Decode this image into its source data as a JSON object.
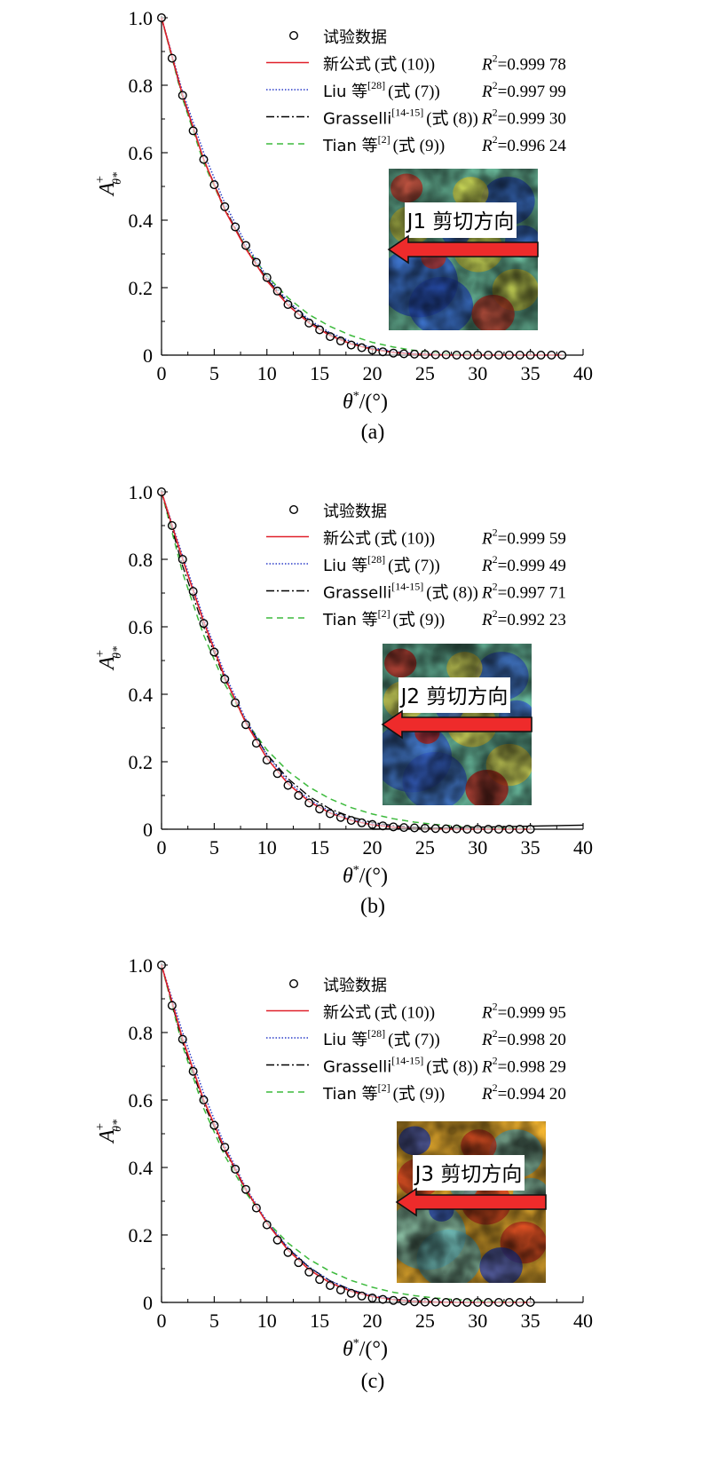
{
  "figure": {
    "legend_entries": [
      {
        "label": "试验数据",
        "ref": "",
        "suffix": ""
      },
      {
        "label": "新公式",
        "ref": "",
        "suffix": "(式 (10))"
      },
      {
        "label": "Liu 等",
        "ref": "[28]",
        "suffix": "(式 (7))"
      },
      {
        "label": "Grasselli",
        "ref": "[14-15]",
        "suffix": "(式 (8))"
      },
      {
        "label": "Tian 等",
        "ref": "[2]",
        "suffix": "(式 (9))"
      }
    ],
    "r2_prefix": "R",
    "r2_sup": "2",
    "ylabel_main": "A",
    "ylabel_sup": "+",
    "ylabel_sub": "θ*",
    "xlabel_main": "θ",
    "xlabel_sup": "*",
    "xlabel_rest": "/(°)",
    "colors": {
      "new": "#e0202a",
      "liu": "#2a3cc8",
      "grasselli": "#000000",
      "tian": "#3dba3d",
      "arrow": "#ee2b2b"
    }
  },
  "chart_data": [
    {
      "type": "scatter",
      "panel_label": "(a)",
      "inset_label": "J1 剪切方向",
      "xlim": [
        0,
        40
      ],
      "ylim": [
        0,
        1.0
      ],
      "xticks": [
        0,
        5,
        10,
        15,
        20,
        25,
        30,
        35,
        40
      ],
      "yticks": [
        0,
        0.2,
        0.4,
        0.6,
        0.8,
        1.0
      ],
      "ytick_labels": [
        "0",
        "0.2",
        "0.4",
        "0.6",
        "0.8",
        "1.0"
      ],
      "r2": [
        "=0.999 78",
        "=0.997 99",
        "=0.999 30",
        "=0.996 24"
      ],
      "experimental": {
        "x": [
          0,
          1,
          2,
          3,
          4,
          5,
          6,
          7,
          8,
          9,
          10,
          11,
          12,
          13,
          14,
          15,
          16,
          17,
          18,
          19,
          20,
          21,
          22,
          23,
          24,
          25,
          26,
          27,
          28,
          29,
          30,
          31,
          32,
          33,
          34,
          35,
          36,
          37,
          38
        ],
        "y": [
          1.0,
          0.88,
          0.77,
          0.665,
          0.58,
          0.505,
          0.44,
          0.38,
          0.325,
          0.275,
          0.23,
          0.19,
          0.15,
          0.12,
          0.095,
          0.075,
          0.055,
          0.042,
          0.03,
          0.022,
          0.015,
          0.01,
          0.006,
          0.004,
          0.003,
          0.002,
          0.001,
          0.001,
          0.0,
          0.0,
          0.0,
          0.0,
          0.0,
          0.0,
          0.0,
          0.0,
          0.0,
          0.0,
          0.0
        ]
      },
      "fit_new": {
        "x": [
          0,
          2,
          4,
          6,
          8,
          10,
          12,
          14,
          16,
          18,
          20,
          22,
          24,
          26,
          28,
          30,
          32,
          34,
          36,
          38
        ],
        "y": [
          1.0,
          0.77,
          0.58,
          0.43,
          0.315,
          0.22,
          0.148,
          0.095,
          0.058,
          0.033,
          0.017,
          0.008,
          0.003,
          0.001,
          0.0,
          0.0,
          0.0,
          0.0,
          0.0,
          0.0
        ]
      },
      "fit_liu": {
        "x": [
          0,
          2,
          4,
          6,
          8,
          10,
          12,
          14,
          16,
          18,
          20,
          22,
          24,
          26,
          28,
          30,
          32,
          34,
          36,
          38
        ],
        "y": [
          1.0,
          0.78,
          0.6,
          0.45,
          0.33,
          0.232,
          0.16,
          0.105,
          0.066,
          0.04,
          0.022,
          0.011,
          0.005,
          0.002,
          0.001,
          0.0,
          0.0,
          0.0,
          0.0,
          0.0
        ]
      },
      "fit_grasselli": {
        "x": [
          0,
          2,
          4,
          6,
          8,
          10,
          12,
          14,
          16,
          18,
          20,
          22,
          24,
          26,
          28,
          30,
          32,
          34,
          36,
          38
        ],
        "y": [
          1.0,
          0.765,
          0.58,
          0.435,
          0.318,
          0.225,
          0.155,
          0.1,
          0.062,
          0.036,
          0.019,
          0.009,
          0.004,
          0.001,
          0.0,
          0.0,
          0.0,
          0.0,
          0.0,
          0.0
        ]
      },
      "fit_tian": {
        "x": [
          0,
          2,
          4,
          6,
          8,
          10,
          12,
          14,
          16,
          18,
          20,
          22,
          24,
          26,
          28,
          30,
          32,
          34,
          36,
          38
        ],
        "y": [
          1.0,
          0.76,
          0.57,
          0.43,
          0.32,
          0.235,
          0.17,
          0.12,
          0.085,
          0.058,
          0.038,
          0.024,
          0.014,
          0.008,
          0.004,
          0.002,
          0.001,
          0.0,
          0.0,
          0.0
        ]
      }
    },
    {
      "type": "scatter",
      "panel_label": "(b)",
      "inset_label": "J2 剪切方向",
      "xlim": [
        0,
        40
      ],
      "ylim": [
        0,
        1.0
      ],
      "xticks": [
        0,
        5,
        10,
        15,
        20,
        25,
        30,
        35,
        40
      ],
      "yticks": [
        0,
        0.2,
        0.4,
        0.6,
        0.8,
        1.0
      ],
      "ytick_labels": [
        "0",
        "0.2",
        "0.4",
        "0.6",
        "0.8",
        "1.0"
      ],
      "r2": [
        "=0.999 59",
        "=0.999 49",
        "=0.997 71",
        "=0.992 23"
      ],
      "experimental": {
        "x": [
          0,
          1,
          2,
          3,
          4,
          5,
          6,
          7,
          8,
          9,
          10,
          11,
          12,
          13,
          14,
          15,
          16,
          17,
          18,
          19,
          20,
          21,
          22,
          23,
          24,
          25,
          26,
          27,
          28,
          29,
          30,
          31,
          32,
          33,
          34,
          35
        ],
        "y": [
          1.0,
          0.9,
          0.8,
          0.705,
          0.61,
          0.525,
          0.445,
          0.375,
          0.31,
          0.255,
          0.205,
          0.165,
          0.13,
          0.1,
          0.078,
          0.06,
          0.046,
          0.035,
          0.026,
          0.019,
          0.014,
          0.01,
          0.007,
          0.005,
          0.004,
          0.003,
          0.002,
          0.001,
          0.001,
          0.0,
          0.0,
          0.0,
          0.0,
          0.0,
          0.0,
          0.0
        ]
      },
      "fit_new": {
        "x": [
          0,
          2,
          4,
          6,
          8,
          10,
          12,
          14,
          16,
          18,
          20,
          22,
          24,
          26,
          28,
          30,
          32,
          34,
          35
        ],
        "y": [
          1.0,
          0.8,
          0.615,
          0.45,
          0.315,
          0.21,
          0.135,
          0.082,
          0.048,
          0.026,
          0.013,
          0.006,
          0.003,
          0.001,
          0.0,
          0.0,
          0.0,
          0.0,
          0.0
        ]
      },
      "fit_liu": {
        "x": [
          0,
          2,
          4,
          6,
          8,
          10,
          12,
          14,
          16,
          18,
          20,
          22,
          24,
          26,
          28,
          30,
          32,
          34,
          35
        ],
        "y": [
          1.0,
          0.81,
          0.625,
          0.46,
          0.325,
          0.22,
          0.142,
          0.088,
          0.053,
          0.03,
          0.016,
          0.008,
          0.004,
          0.002,
          0.001,
          0.0,
          0.0,
          0.0,
          0.0
        ]
      },
      "fit_grasselli": {
        "x": [
          0,
          2,
          4,
          6,
          8,
          10,
          12,
          14,
          16,
          18,
          20,
          22,
          24,
          26,
          28,
          30,
          32,
          34,
          35
        ],
        "y": [
          1.0,
          0.78,
          0.6,
          0.445,
          0.32,
          0.222,
          0.15,
          0.097,
          0.06,
          0.036,
          0.02,
          0.011,
          0.006,
          0.003,
          0.001,
          0.0,
          0.0,
          0.0,
          0.0
        ]
      },
      "fit_tian": {
        "x": [
          0,
          2,
          4,
          6,
          8,
          10,
          12,
          14,
          16,
          18,
          20,
          22,
          24,
          26,
          28,
          30,
          32,
          34,
          35
        ],
        "y": [
          1.0,
          0.76,
          0.575,
          0.43,
          0.32,
          0.235,
          0.172,
          0.125,
          0.09,
          0.064,
          0.045,
          0.031,
          0.021,
          0.014,
          0.009,
          0.006,
          0.004,
          0.002,
          0.002
        ]
      },
      "tail_line": {
        "x": [
          20,
          40
        ],
        "y": [
          0.0,
          0.012
        ]
      }
    },
    {
      "type": "scatter",
      "panel_label": "(c)",
      "inset_label": "J3 剪切方向",
      "xlim": [
        0,
        40
      ],
      "ylim": [
        0,
        1.0
      ],
      "xticks": [
        0,
        5,
        10,
        15,
        20,
        25,
        30,
        35,
        40
      ],
      "yticks": [
        0,
        0.2,
        0.4,
        0.6,
        0.8,
        1.0
      ],
      "ytick_labels": [
        "0",
        "0.2",
        "0.4",
        "0.6",
        "0.8",
        "1.0"
      ],
      "r2": [
        "=0.999 95",
        "=0.998 20",
        "=0.998 29",
        "=0.994 20"
      ],
      "experimental": {
        "x": [
          0,
          1,
          2,
          3,
          4,
          5,
          6,
          7,
          8,
          9,
          10,
          11,
          12,
          13,
          14,
          15,
          16,
          17,
          18,
          19,
          20,
          21,
          22,
          23,
          24,
          25,
          26,
          27,
          28,
          29,
          30,
          31,
          32,
          33,
          34,
          35
        ],
        "y": [
          1.0,
          0.88,
          0.78,
          0.685,
          0.6,
          0.525,
          0.46,
          0.395,
          0.335,
          0.28,
          0.23,
          0.185,
          0.148,
          0.118,
          0.09,
          0.068,
          0.05,
          0.037,
          0.027,
          0.019,
          0.013,
          0.009,
          0.006,
          0.004,
          0.002,
          0.001,
          0.001,
          0.0,
          0.0,
          0.0,
          0.0,
          0.0,
          0.0,
          0.0,
          0.0,
          0.0
        ]
      },
      "fit_new": {
        "x": [
          0,
          2,
          4,
          6,
          8,
          10,
          12,
          14,
          16,
          18,
          20,
          22,
          24,
          26,
          28,
          30,
          32,
          34,
          35
        ],
        "y": [
          1.0,
          0.78,
          0.6,
          0.455,
          0.335,
          0.235,
          0.155,
          0.097,
          0.058,
          0.033,
          0.017,
          0.008,
          0.003,
          0.001,
          0.0,
          0.0,
          0.0,
          0.0,
          0.0
        ]
      },
      "fit_liu": {
        "x": [
          0,
          2,
          4,
          6,
          8,
          10,
          12,
          14,
          16,
          18,
          20,
          22,
          24,
          26,
          28,
          30,
          32,
          34,
          35
        ],
        "y": [
          1.0,
          0.8,
          0.62,
          0.465,
          0.34,
          0.24,
          0.162,
          0.105,
          0.064,
          0.037,
          0.02,
          0.01,
          0.004,
          0.002,
          0.001,
          0.0,
          0.0,
          0.0,
          0.0
        ]
      },
      "fit_grasselli": {
        "x": [
          0,
          2,
          4,
          6,
          8,
          10,
          12,
          14,
          16,
          18,
          20,
          22,
          24,
          26,
          28,
          30,
          32,
          34,
          35
        ],
        "y": [
          1.0,
          0.77,
          0.59,
          0.45,
          0.332,
          0.236,
          0.16,
          0.104,
          0.064,
          0.037,
          0.02,
          0.01,
          0.005,
          0.002,
          0.001,
          0.0,
          0.0,
          0.0,
          0.0
        ]
      },
      "fit_tian": {
        "x": [
          0,
          2,
          4,
          6,
          8,
          10,
          12,
          14,
          16,
          18,
          20,
          22,
          24,
          26,
          28,
          30,
          32,
          34,
          35
        ],
        "y": [
          1.0,
          0.76,
          0.575,
          0.435,
          0.325,
          0.24,
          0.176,
          0.128,
          0.092,
          0.065,
          0.045,
          0.03,
          0.02,
          0.013,
          0.008,
          0.005,
          0.003,
          0.002,
          0.001
        ]
      }
    }
  ]
}
